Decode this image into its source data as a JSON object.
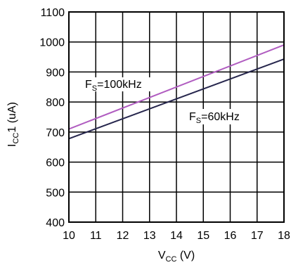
{
  "chart_data": {
    "type": "line",
    "title": "",
    "xlabel": {
      "main": "V",
      "sub": "CC",
      "unit": " (V)"
    },
    "ylabel": {
      "main": "I",
      "sub": "CC",
      "suffix": "1 (uA)"
    },
    "xlim": [
      10,
      18
    ],
    "ylim": [
      400,
      1100
    ],
    "xticks": [
      10,
      11,
      12,
      13,
      14,
      15,
      16,
      17,
      18
    ],
    "yticks": [
      400,
      500,
      600,
      700,
      800,
      900,
      1000,
      1100
    ],
    "grid": true,
    "legend": "none",
    "series": [
      {
        "name": "F_S=100kHz",
        "label_main": "F",
        "label_sub": "S",
        "label_rest": "=100kHz",
        "color": "#b05cc0",
        "x": [
          10,
          18
        ],
        "y": [
          710,
          990
        ]
      },
      {
        "name": "F_S=60kHz",
        "label_main": "F",
        "label_sub": "S",
        "label_rest": "=60kHz",
        "color": "#26264d",
        "x": [
          10,
          18
        ],
        "y": [
          678,
          943
        ]
      }
    ]
  }
}
